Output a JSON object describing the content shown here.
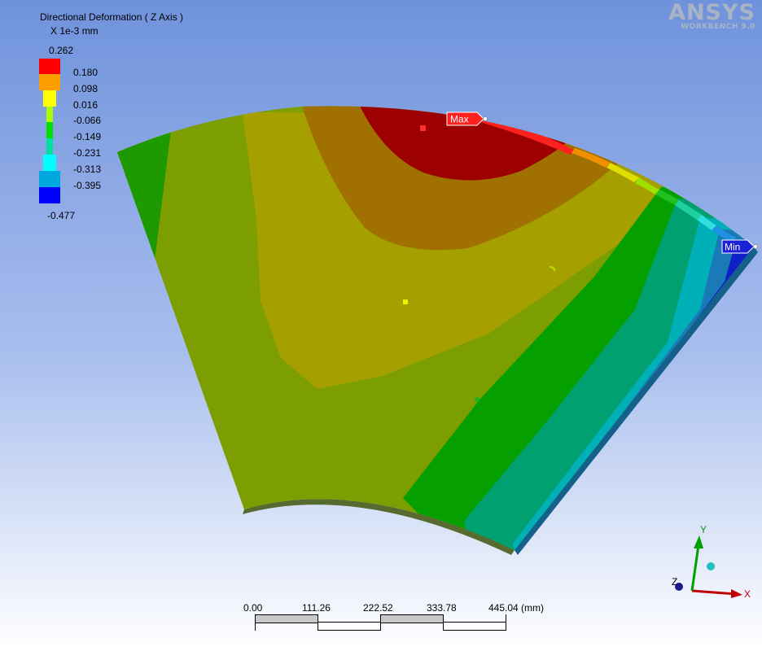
{
  "legend": {
    "title": "Directional Deformation ( Z Axis )",
    "units": "X 1e-3 mm",
    "levels": [
      "0.262",
      "0.180",
      "0.098",
      "0.016",
      "-0.066",
      "-0.149",
      "-0.231",
      "-0.313",
      "-0.395",
      "-0.477"
    ],
    "colors": [
      "#ff0000",
      "#ff9e00",
      "#ffff00",
      "#a8ff00",
      "#00e000",
      "#00e0a0",
      "#00ffff",
      "#00a8e0",
      "#0000ff"
    ]
  },
  "logo": {
    "brand": "ANSYS",
    "subtitle": "WORKBENCH 9.0"
  },
  "markers": {
    "max_label": "Max",
    "min_label": "Min"
  },
  "scale_bar": {
    "ticks": [
      "0.00",
      "111.26",
      "222.52",
      "333.78",
      "445.04 (mm)"
    ]
  },
  "axes": {
    "x_label": "X",
    "y_label": "Y",
    "z_label": "Z"
  },
  "colors": {
    "background_top": "#6f92dc",
    "background_bottom": "#ffffff",
    "max_marker": "#ff2020",
    "min_marker": "#1a20d8"
  }
}
